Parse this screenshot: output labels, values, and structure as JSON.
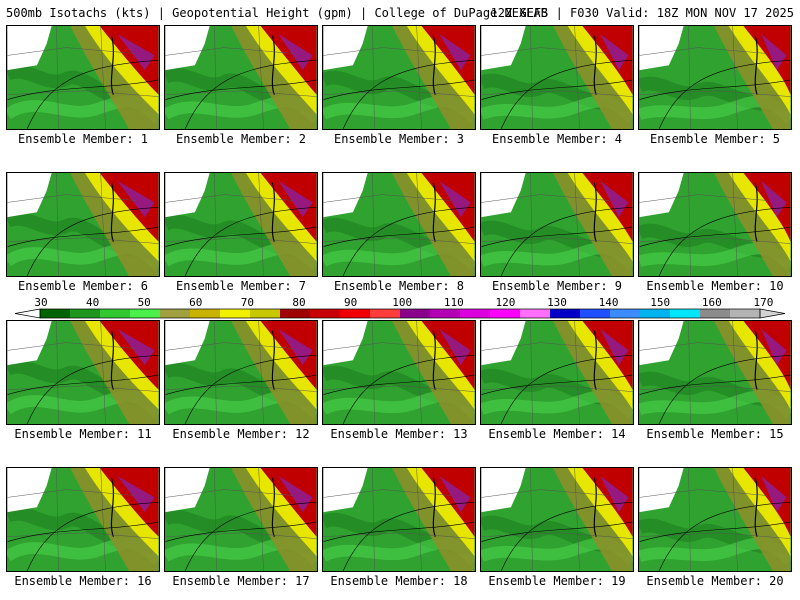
{
  "header": {
    "left_title": "500mb Isotachs (kts) | Geopotential Height (gpm) | College of DuPage NEXLAB",
    "right_title": "12Z GEFS | F030 Valid: 18Z MON NOV 17 2025"
  },
  "panels": [
    {
      "label": "Ensemble Member: 1"
    },
    {
      "label": "Ensemble Member: 2"
    },
    {
      "label": "Ensemble Member: 3"
    },
    {
      "label": "Ensemble Member: 4"
    },
    {
      "label": "Ensemble Member: 5"
    },
    {
      "label": "Ensemble Member: 6"
    },
    {
      "label": "Ensemble Member: 7"
    },
    {
      "label": "Ensemble Member: 8"
    },
    {
      "label": "Ensemble Member: 9"
    },
    {
      "label": "Ensemble Member: 10"
    },
    {
      "label": "Ensemble Member: 11"
    },
    {
      "label": "Ensemble Member: 12"
    },
    {
      "label": "Ensemble Member: 13"
    },
    {
      "label": "Ensemble Member: 14"
    },
    {
      "label": "Ensemble Member: 15"
    },
    {
      "label": "Ensemble Member: 16"
    },
    {
      "label": "Ensemble Member: 17"
    },
    {
      "label": "Ensemble Member: 18"
    },
    {
      "label": "Ensemble Member: 19"
    },
    {
      "label": "Ensemble Member: 20"
    }
  ],
  "colorbar": {
    "ticks": [
      "30",
      "40",
      "50",
      "60",
      "70",
      "80",
      "90",
      "100",
      "110",
      "120",
      "130",
      "140",
      "150",
      "160",
      "170"
    ],
    "colors": [
      "#006400",
      "#1e961e",
      "#32c832",
      "#4bf04b",
      "#a0a040",
      "#c8b400",
      "#f0f000",
      "#c8c800",
      "#a00000",
      "#c80000",
      "#f00000",
      "#ff3c3c",
      "#8b008b",
      "#b400b4",
      "#dc00dc",
      "#ff00ff",
      "#ff6eff",
      "#0000c8",
      "#1e50ff",
      "#3c8cff",
      "#00b4f0",
      "#00e6ff",
      "#8c8c8c",
      "#b4b4b4"
    ]
  }
}
